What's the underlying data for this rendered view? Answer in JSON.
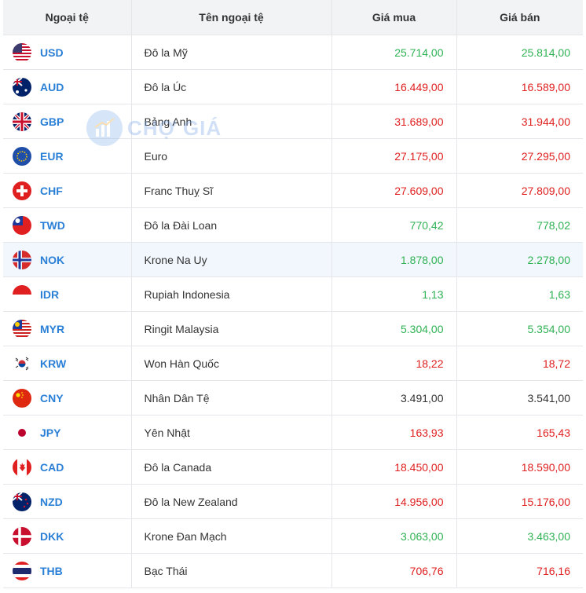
{
  "headers": {
    "code": "Ngoại tệ",
    "name": "Tên ngoại tệ",
    "buy": "Giá mua",
    "sell": "Giá bán"
  },
  "watermark": "CHỢ GIÁ",
  "colors": {
    "up": "#2fb254",
    "down": "#e02020",
    "flat": "#333333",
    "link": "#2a7fd6"
  },
  "rows": [
    {
      "code": "USD",
      "name": "Đô la Mỹ",
      "buy": "25.714,00",
      "sell": "25.814,00",
      "trend": "up",
      "flag": "us-flag-icon"
    },
    {
      "code": "AUD",
      "name": "Đô la Úc",
      "buy": "16.449,00",
      "sell": "16.589,00",
      "trend": "down",
      "flag": "au-flag-icon"
    },
    {
      "code": "GBP",
      "name": "Bảng Anh",
      "buy": "31.689,00",
      "sell": "31.944,00",
      "trend": "down",
      "flag": "gb-flag-icon"
    },
    {
      "code": "EUR",
      "name": "Euro",
      "buy": "27.175,00",
      "sell": "27.295,00",
      "trend": "down",
      "flag": "eu-flag-icon"
    },
    {
      "code": "CHF",
      "name": "Franc Thuỵ Sĩ",
      "buy": "27.609,00",
      "sell": "27.809,00",
      "trend": "down",
      "flag": "ch-flag-icon"
    },
    {
      "code": "TWD",
      "name": "Đô la Đài Loan",
      "buy": "770,42",
      "sell": "778,02",
      "trend": "up",
      "flag": "tw-flag-icon"
    },
    {
      "code": "NOK",
      "name": "Krone Na Uy",
      "buy": "1.878,00",
      "sell": "2.278,00",
      "trend": "up",
      "flag": "no-flag-icon"
    },
    {
      "code": "IDR",
      "name": "Rupiah Indonesia",
      "buy": "1,13",
      "sell": "1,63",
      "trend": "up",
      "flag": "id-flag-icon"
    },
    {
      "code": "MYR",
      "name": "Ringit Malaysia",
      "buy": "5.304,00",
      "sell": "5.354,00",
      "trend": "up",
      "flag": "my-flag-icon"
    },
    {
      "code": "KRW",
      "name": "Won Hàn Quốc",
      "buy": "18,22",
      "sell": "18,72",
      "trend": "down",
      "flag": "kr-flag-icon"
    },
    {
      "code": "CNY",
      "name": "Nhân Dân Tệ",
      "buy": "3.491,00",
      "sell": "3.541,00",
      "trend": "flat",
      "flag": "cn-flag-icon"
    },
    {
      "code": "JPY",
      "name": "Yên Nhật",
      "buy": "163,93",
      "sell": "165,43",
      "trend": "down",
      "flag": "jp-flag-icon"
    },
    {
      "code": "CAD",
      "name": "Đô la Canada",
      "buy": "18.450,00",
      "sell": "18.590,00",
      "trend": "down",
      "flag": "ca-flag-icon"
    },
    {
      "code": "NZD",
      "name": "Đô la New Zealand",
      "buy": "14.956,00",
      "sell": "15.176,00",
      "trend": "down",
      "flag": "nz-flag-icon"
    },
    {
      "code": "DKK",
      "name": "Krone Đan Mạch",
      "buy": "3.063,00",
      "sell": "3.463,00",
      "trend": "up",
      "flag": "dk-flag-icon"
    },
    {
      "code": "THB",
      "name": "Bạc Thái",
      "buy": "706,76",
      "sell": "716,16",
      "trend": "down",
      "flag": "th-flag-icon"
    }
  ]
}
